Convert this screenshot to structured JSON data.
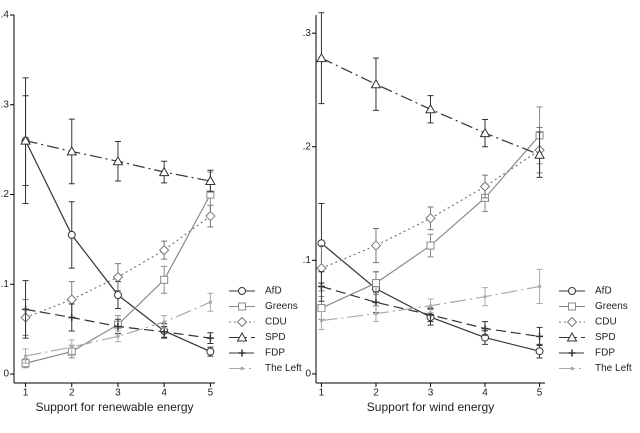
{
  "chart_data": [
    {
      "type": "line",
      "xlabel": "Support for renewable energy",
      "x": [
        1,
        2,
        3,
        4,
        5
      ],
      "xlim": [
        0.75,
        5.1
      ],
      "xticks": [
        1,
        2,
        3,
        4,
        5
      ],
      "ylim": [
        -0.01,
        0.4
      ],
      "yticks": [
        0,
        {
          "value": 0.1,
          "label": ".1"
        },
        {
          "value": 0.2,
          "label": ".2"
        },
        {
          "value": 0.3,
          "label": ".3"
        },
        {
          "value": 0.4,
          "label": ".4"
        }
      ],
      "legend": "right",
      "series": [
        {
          "name": "AfD",
          "color": "#333333",
          "dash": "solid",
          "marker": "circle",
          "values": [
            0.26,
            0.155,
            0.088,
            0.048,
            0.025
          ],
          "errors": [
            0.07,
            0.037,
            0.015,
            0.008,
            0.005
          ]
        },
        {
          "name": "Greens",
          "color": "#8a8a8a",
          "dash": "solid",
          "marker": "square",
          "values": [
            0.012,
            0.025,
            0.055,
            0.105,
            0.2
          ],
          "errors": [
            0.005,
            0.007,
            0.01,
            0.015,
            0.025
          ]
        },
        {
          "name": "CDU",
          "color": "#777777",
          "dash": "dot",
          "marker": "diamond",
          "values": [
            0.063,
            0.083,
            0.108,
            0.138,
            0.176
          ],
          "errors": [
            0.02,
            0.02,
            0.015,
            0.01,
            0.012
          ]
        },
        {
          "name": "SPD",
          "color": "#333333",
          "dash": "dashdot",
          "marker": "triangle",
          "values": [
            0.26,
            0.248,
            0.237,
            0.225,
            0.215
          ],
          "errors": [
            0.05,
            0.036,
            0.022,
            0.012,
            0.012
          ]
        },
        {
          "name": "FDP",
          "color": "#333333",
          "dash": "longdash",
          "marker": "plus",
          "values": [
            0.072,
            0.063,
            0.053,
            0.047,
            0.04
          ],
          "errors": [
            0.032,
            0.015,
            0.008,
            0.006,
            0.006
          ]
        },
        {
          "name": "The Left",
          "color": "#aaaaaa",
          "dash": "longdashdot",
          "marker": "none",
          "values": [
            0.02,
            0.03,
            0.042,
            0.058,
            0.08
          ],
          "errors": [
            0.008,
            0.008,
            0.006,
            0.007,
            0.01
          ]
        }
      ]
    },
    {
      "type": "line",
      "xlabel": "Support for wind energy",
      "x": [
        1,
        2,
        3,
        4,
        5
      ],
      "xlim": [
        0.9,
        5.1
      ],
      "xticks": [
        1,
        2,
        3,
        4,
        5
      ],
      "ylim": [
        -0.008,
        0.316
      ],
      "yticks": [
        0,
        {
          "value": 0.1,
          "label": ".1"
        },
        {
          "value": 0.2,
          "label": ".2"
        },
        {
          "value": 0.3,
          "label": ".3"
        }
      ],
      "legend": "right",
      "series": [
        {
          "name": "AfD",
          "color": "#333333",
          "dash": "solid",
          "marker": "circle",
          "values": [
            0.115,
            0.075,
            0.05,
            0.032,
            0.02
          ],
          "errors": [
            0.035,
            0.015,
            0.007,
            0.006,
            0.006
          ]
        },
        {
          "name": "Greens",
          "color": "#8a8a8a",
          "dash": "solid",
          "marker": "square",
          "values": [
            0.058,
            0.08,
            0.113,
            0.155,
            0.21
          ],
          "errors": [
            0.01,
            0.01,
            0.01,
            0.012,
            0.025
          ]
        },
        {
          "name": "CDU",
          "color": "#777777",
          "dash": "dot",
          "marker": "diamond",
          "values": [
            0.093,
            0.113,
            0.137,
            0.165,
            0.197
          ],
          "errors": [
            0.02,
            0.015,
            0.01,
            0.01,
            0.02
          ]
        },
        {
          "name": "SPD",
          "color": "#333333",
          "dash": "dashdot",
          "marker": "triangle",
          "values": [
            0.278,
            0.255,
            0.233,
            0.212,
            0.193
          ],
          "errors": [
            0.04,
            0.023,
            0.012,
            0.012,
            0.02
          ]
        },
        {
          "name": "FDP",
          "color": "#333333",
          "dash": "longdash",
          "marker": "plus",
          "values": [
            0.077,
            0.063,
            0.052,
            0.04,
            0.033
          ],
          "errors": [
            0.013,
            0.009,
            0.006,
            0.006,
            0.008
          ]
        },
        {
          "name": "The Left",
          "color": "#aaaaaa",
          "dash": "longdashdot",
          "marker": "none",
          "values": [
            0.047,
            0.053,
            0.06,
            0.068,
            0.077
          ],
          "errors": [
            0.008,
            0.007,
            0.006,
            0.008,
            0.015
          ]
        }
      ]
    }
  ]
}
